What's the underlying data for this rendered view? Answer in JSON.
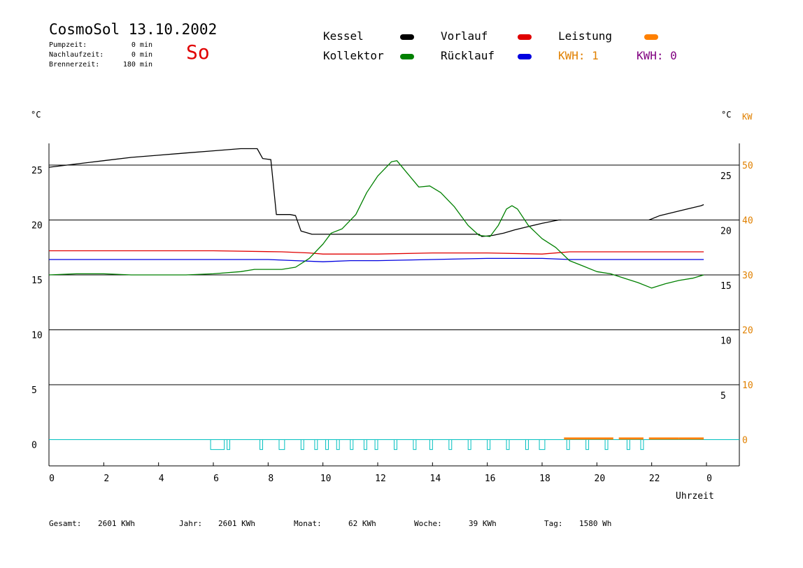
{
  "header": {
    "title": "CosmoSol 13.10.2002",
    "pumpzeit_label": "Pumpzeit:",
    "pumpzeit_value": "0 min",
    "nachlaufzeit_label": "Nachlaufzeit:",
    "nachlaufzeit_value": "0 min",
    "brennerzeit_label": "Brennerzeit:",
    "brennerzeit_value": "180 min",
    "weekday": "So"
  },
  "legend": {
    "kessel": "Kessel",
    "vorlauf": "Vorlauf",
    "leistung": "Leistung",
    "kollektor": "Kollektor",
    "ruecklauf": "Rücklauf",
    "kwh1": "KWH: 1",
    "kwh0": "KWH: 0"
  },
  "colors": {
    "kessel": "#000000",
    "vorlauf": "#e00000",
    "leistung": "#ff8000",
    "kollektor": "#008000",
    "ruecklauf": "#0000e0",
    "kwh1": "#e08000",
    "kwh0": "#800080",
    "pump": "#00c0c0",
    "kw_axis": "#e08000"
  },
  "axes": {
    "left_unit": "°C",
    "right_unit_c": "°C",
    "right_unit_kw": "KW",
    "xlabel": "Uhrzeit"
  },
  "footer": {
    "gesamt_label": "Gesamt:",
    "gesamt_value": "2601 KWh",
    "jahr_label": "Jahr:",
    "jahr_value": "2601 KWh",
    "monat_label": "Monat:",
    "monat_value": "62 KWh",
    "woche_label": "Woche:",
    "woche_value": "39 KWh",
    "tag_label": "Tag:",
    "tag_value": "1580 Wh"
  },
  "chart_data": {
    "type": "line",
    "title": "CosmoSol 13.10.2002",
    "xlabel": "Uhrzeit",
    "ylabel": "°C",
    "xlim": [
      0,
      24
    ],
    "ylim": [
      -2,
      27
    ],
    "x_ticks": [
      "0",
      "2",
      "4",
      "6",
      "8",
      "10",
      "12",
      "14",
      "16",
      "18",
      "20",
      "22",
      "0"
    ],
    "left_ticks": [
      0,
      5,
      10,
      15,
      20,
      25
    ],
    "right_ticks_c": [
      5,
      10,
      15,
      20,
      25
    ],
    "right_ticks_kw": [
      0,
      10,
      20,
      30,
      40,
      50
    ],
    "grid_y": [
      0,
      5,
      10,
      15,
      20,
      25
    ],
    "series": [
      {
        "name": "Kessel",
        "color_key": "kessel",
        "points": [
          [
            0,
            24.8
          ],
          [
            1,
            25.1
          ],
          [
            2,
            25.4
          ],
          [
            3,
            25.7
          ],
          [
            4,
            25.9
          ],
          [
            5,
            26.1
          ],
          [
            6,
            26.3
          ],
          [
            7,
            26.5
          ],
          [
            7.6,
            26.5
          ],
          [
            7.8,
            25.6
          ],
          [
            8.1,
            25.5
          ],
          [
            8.3,
            20.5
          ],
          [
            8.8,
            20.5
          ],
          [
            9.0,
            20.4
          ],
          [
            9.2,
            19.0
          ],
          [
            9.6,
            18.7
          ],
          [
            15.7,
            18.7
          ],
          [
            15.8,
            18.5
          ],
          [
            16.2,
            18.6
          ],
          [
            16.6,
            18.8
          ],
          [
            17,
            19.1
          ],
          [
            17.5,
            19.4
          ],
          [
            18,
            19.7
          ],
          [
            18.6,
            20.0
          ],
          [
            18.7,
            20.0
          ]
        ]
      },
      {
        "name": "Kessel",
        "color_key": "kessel",
        "points": [
          [
            21.9,
            20.0
          ],
          [
            22.3,
            20.4
          ],
          [
            22.8,
            20.7
          ],
          [
            23.3,
            21.0
          ],
          [
            23.8,
            21.3
          ],
          [
            23.9,
            21.4
          ]
        ]
      },
      {
        "name": "Vorlauf",
        "color_key": "vorlauf",
        "points": [
          [
            0,
            17.2
          ],
          [
            3,
            17.2
          ],
          [
            6,
            17.2
          ],
          [
            8.5,
            17.1
          ],
          [
            9.5,
            17.0
          ],
          [
            10,
            16.9
          ],
          [
            11,
            16.9
          ],
          [
            12,
            16.9
          ],
          [
            14,
            17.0
          ],
          [
            16,
            17.0
          ],
          [
            18,
            16.9
          ],
          [
            19,
            17.1
          ],
          [
            20,
            17.1
          ],
          [
            22,
            17.1
          ],
          [
            23.9,
            17.1
          ]
        ]
      },
      {
        "name": "Rücklauf",
        "color_key": "ruecklauf",
        "points": [
          [
            0,
            16.4
          ],
          [
            3,
            16.4
          ],
          [
            6,
            16.4
          ],
          [
            8,
            16.4
          ],
          [
            9,
            16.3
          ],
          [
            10,
            16.2
          ],
          [
            11,
            16.3
          ],
          [
            12,
            16.3
          ],
          [
            14,
            16.4
          ],
          [
            16,
            16.5
          ],
          [
            18,
            16.5
          ],
          [
            19,
            16.4
          ],
          [
            20,
            16.4
          ],
          [
            22,
            16.4
          ],
          [
            23.9,
            16.4
          ]
        ]
      },
      {
        "name": "Kollektor",
        "color_key": "kollektor",
        "points": [
          [
            0,
            15.0
          ],
          [
            1,
            15.1
          ],
          [
            2,
            15.1
          ],
          [
            3,
            15.0
          ],
          [
            4,
            15.0
          ],
          [
            5,
            15.0
          ],
          [
            6,
            15.1
          ],
          [
            7,
            15.3
          ],
          [
            7.5,
            15.5
          ],
          [
            8.5,
            15.5
          ],
          [
            9,
            15.7
          ],
          [
            9.5,
            16.5
          ],
          [
            10,
            17.8
          ],
          [
            10.3,
            18.8
          ],
          [
            10.7,
            19.2
          ],
          [
            11.2,
            20.5
          ],
          [
            11.6,
            22.5
          ],
          [
            12,
            24.0
          ],
          [
            12.5,
            25.3
          ],
          [
            12.7,
            25.4
          ],
          [
            13,
            24.5
          ],
          [
            13.5,
            23.0
          ],
          [
            13.9,
            23.1
          ],
          [
            14.3,
            22.5
          ],
          [
            14.8,
            21.2
          ],
          [
            15.3,
            19.5
          ],
          [
            15.7,
            18.6
          ],
          [
            16.1,
            18.5
          ],
          [
            16.4,
            19.5
          ],
          [
            16.7,
            21.0
          ],
          [
            16.9,
            21.3
          ],
          [
            17.1,
            21.0
          ],
          [
            17.5,
            19.5
          ],
          [
            18,
            18.3
          ],
          [
            18.5,
            17.5
          ],
          [
            19,
            16.3
          ],
          [
            19.5,
            15.8
          ],
          [
            20,
            15.3
          ],
          [
            20.5,
            15.1
          ],
          [
            21,
            14.7
          ],
          [
            21.5,
            14.3
          ],
          [
            22,
            13.8
          ],
          [
            22.5,
            14.2
          ],
          [
            23,
            14.5
          ],
          [
            23.5,
            14.7
          ],
          [
            23.9,
            15.0
          ]
        ]
      }
    ],
    "pump_pulses": [
      [
        5.9,
        6.4
      ],
      [
        6.5,
        6.6
      ],
      [
        7.7,
        7.8
      ],
      [
        8.4,
        8.6
      ],
      [
        9.2,
        9.3
      ],
      [
        9.7,
        9.8
      ],
      [
        10.1,
        10.2
      ],
      [
        10.5,
        10.6
      ],
      [
        11.0,
        11.1
      ],
      [
        11.5,
        11.6
      ],
      [
        11.9,
        12.0
      ],
      [
        12.6,
        12.7
      ],
      [
        13.3,
        13.4
      ],
      [
        13.9,
        14.0
      ],
      [
        14.6,
        14.7
      ],
      [
        15.3,
        15.4
      ],
      [
        16.0,
        16.1
      ],
      [
        16.7,
        16.8
      ],
      [
        17.4,
        17.5
      ],
      [
        17.9,
        18.1
      ],
      [
        18.9,
        19.0
      ],
      [
        19.6,
        19.7
      ],
      [
        20.3,
        20.4
      ],
      [
        21.1,
        21.2
      ],
      [
        21.6,
        21.7
      ]
    ],
    "pump_depth": 0.9,
    "leistung_segments": [
      [
        18.8,
        20.6
      ],
      [
        20.8,
        21.7
      ],
      [
        21.9,
        23.0
      ],
      [
        23.0,
        23.9
      ]
    ]
  }
}
